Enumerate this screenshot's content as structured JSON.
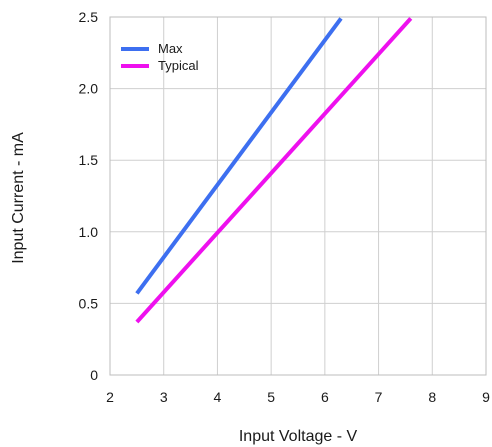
{
  "chart_data": {
    "type": "line",
    "xlabel": "Input Voltage - V",
    "ylabel": "Input Current - mA",
    "xlim": [
      2,
      9
    ],
    "ylim": [
      0,
      2.5
    ],
    "xticks": [
      "2",
      "3",
      "4",
      "5",
      "6",
      "7",
      "8",
      "9"
    ],
    "yticks": [
      "0",
      "0.5",
      "1.0",
      "1.5",
      "2.0",
      "2.5"
    ],
    "grid": true,
    "legend_position": "top-left",
    "series": [
      {
        "name": "Max",
        "color": "#3d6ff0",
        "points": [
          [
            2.5,
            0.57
          ],
          [
            6.3,
            2.49
          ]
        ]
      },
      {
        "name": "Typical",
        "color": "#ee10ee",
        "points": [
          [
            2.5,
            0.37
          ],
          [
            7.6,
            2.49
          ]
        ]
      }
    ]
  }
}
